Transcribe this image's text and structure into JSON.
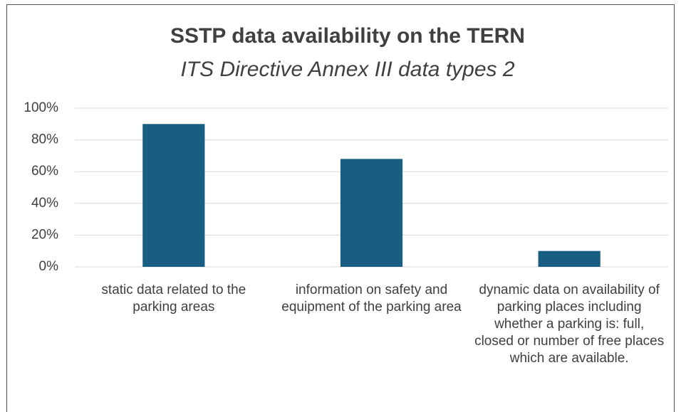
{
  "chart_data": {
    "type": "bar",
    "title": "SSTP data availability on the TERN",
    "subtitle": "ITS Directive Annex III data types 2",
    "categories": [
      "static data related to the parking areas",
      "information on safety and equipment of the parking area",
      "dynamic data on availability of parking places including whether a parking is: full, closed or number of free places which are available."
    ],
    "values": [
      90,
      68,
      10
    ],
    "color": "#175e82",
    "ylim": [
      0,
      100
    ],
    "yticks": [
      {
        "value": 0,
        "label": "0%"
      },
      {
        "value": 20,
        "label": "20%"
      },
      {
        "value": 40,
        "label": "40%"
      },
      {
        "value": 60,
        "label": "60%"
      },
      {
        "value": 80,
        "label": "80%"
      },
      {
        "value": 100,
        "label": "100%"
      }
    ],
    "grid": true
  }
}
